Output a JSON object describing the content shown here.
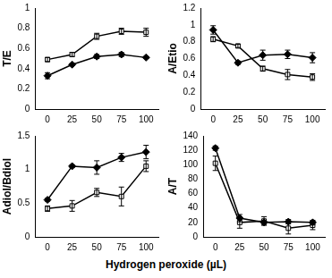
{
  "chart_data": [
    {
      "type": "line",
      "ylabel": "T/E",
      "categories": [
        "0",
        "25",
        "50",
        "75",
        "100"
      ],
      "ylim": [
        0,
        1
      ],
      "yticks": [
        0,
        0.2,
        0.4,
        0.6,
        0.8,
        1
      ],
      "grid": false,
      "series": [
        {
          "color": "#000000",
          "marker": "square-open",
          "values": [
            0.49,
            0.54,
            0.72,
            0.77,
            0.76
          ],
          "errors": [
            0.02,
            0.02,
            0.03,
            0.03,
            0.04
          ]
        },
        {
          "color": "#000000",
          "marker": "diamond",
          "values": [
            0.33,
            0.44,
            0.52,
            0.54,
            0.51
          ],
          "errors": [
            0.03,
            0.01,
            0.02,
            0.02,
            0.01
          ]
        }
      ]
    },
    {
      "type": "line",
      "ylabel": "A/Etio",
      "categories": [
        "0",
        "25",
        "50",
        "75",
        "100"
      ],
      "ylim": [
        0,
        1.2
      ],
      "yticks": [
        0,
        0.2,
        0.4,
        0.6,
        0.8,
        1,
        1.2
      ],
      "grid": false,
      "series": [
        {
          "color": "#000000",
          "marker": "diamond",
          "values": [
            0.94,
            0.55,
            0.64,
            0.65,
            0.61
          ],
          "errors": [
            0.05,
            0.02,
            0.06,
            0.05,
            0.06
          ]
        },
        {
          "color": "#000000",
          "marker": "square-open",
          "values": [
            0.83,
            0.75,
            0.48,
            0.41,
            0.38
          ],
          "errors": [
            0.03,
            0.02,
            0.03,
            0.06,
            0.04
          ]
        }
      ]
    },
    {
      "type": "line",
      "ylabel": "Adiol/Bdiol",
      "categories": [
        "0",
        "25",
        "50",
        "75",
        "100"
      ],
      "ylim": [
        0,
        1.5
      ],
      "yticks": [
        0,
        0.5,
        1,
        1.5
      ],
      "grid": false,
      "series": [
        {
          "color": "#000000",
          "marker": "diamond",
          "values": [
            0.55,
            1.05,
            1.03,
            1.18,
            1.26
          ],
          "errors": [
            0.02,
            0.02,
            0.1,
            0.06,
            0.1
          ]
        },
        {
          "color": "#000000",
          "marker": "square-open",
          "values": [
            0.42,
            0.46,
            0.66,
            0.6,
            1.05
          ],
          "errors": [
            0.04,
            0.08,
            0.06,
            0.14,
            0.08
          ]
        }
      ]
    },
    {
      "type": "line",
      "ylabel": "A/T",
      "categories": [
        "0",
        "25",
        "50",
        "75",
        "100"
      ],
      "ylim": [
        0,
        140
      ],
      "yticks": [
        0,
        20,
        40,
        60,
        80,
        100,
        120,
        140
      ],
      "grid": false,
      "series": [
        {
          "color": "#000000",
          "marker": "diamond",
          "values": [
            123,
            26,
            20,
            21,
            20
          ],
          "errors": [
            3,
            5,
            3,
            3,
            3
          ]
        },
        {
          "color": "#000000",
          "marker": "square-open",
          "values": [
            102,
            20,
            22,
            12,
            16
          ],
          "errors": [
            10,
            8,
            6,
            8,
            6
          ]
        }
      ]
    }
  ],
  "xlabel": "Hydrogen peroxide (µL)"
}
